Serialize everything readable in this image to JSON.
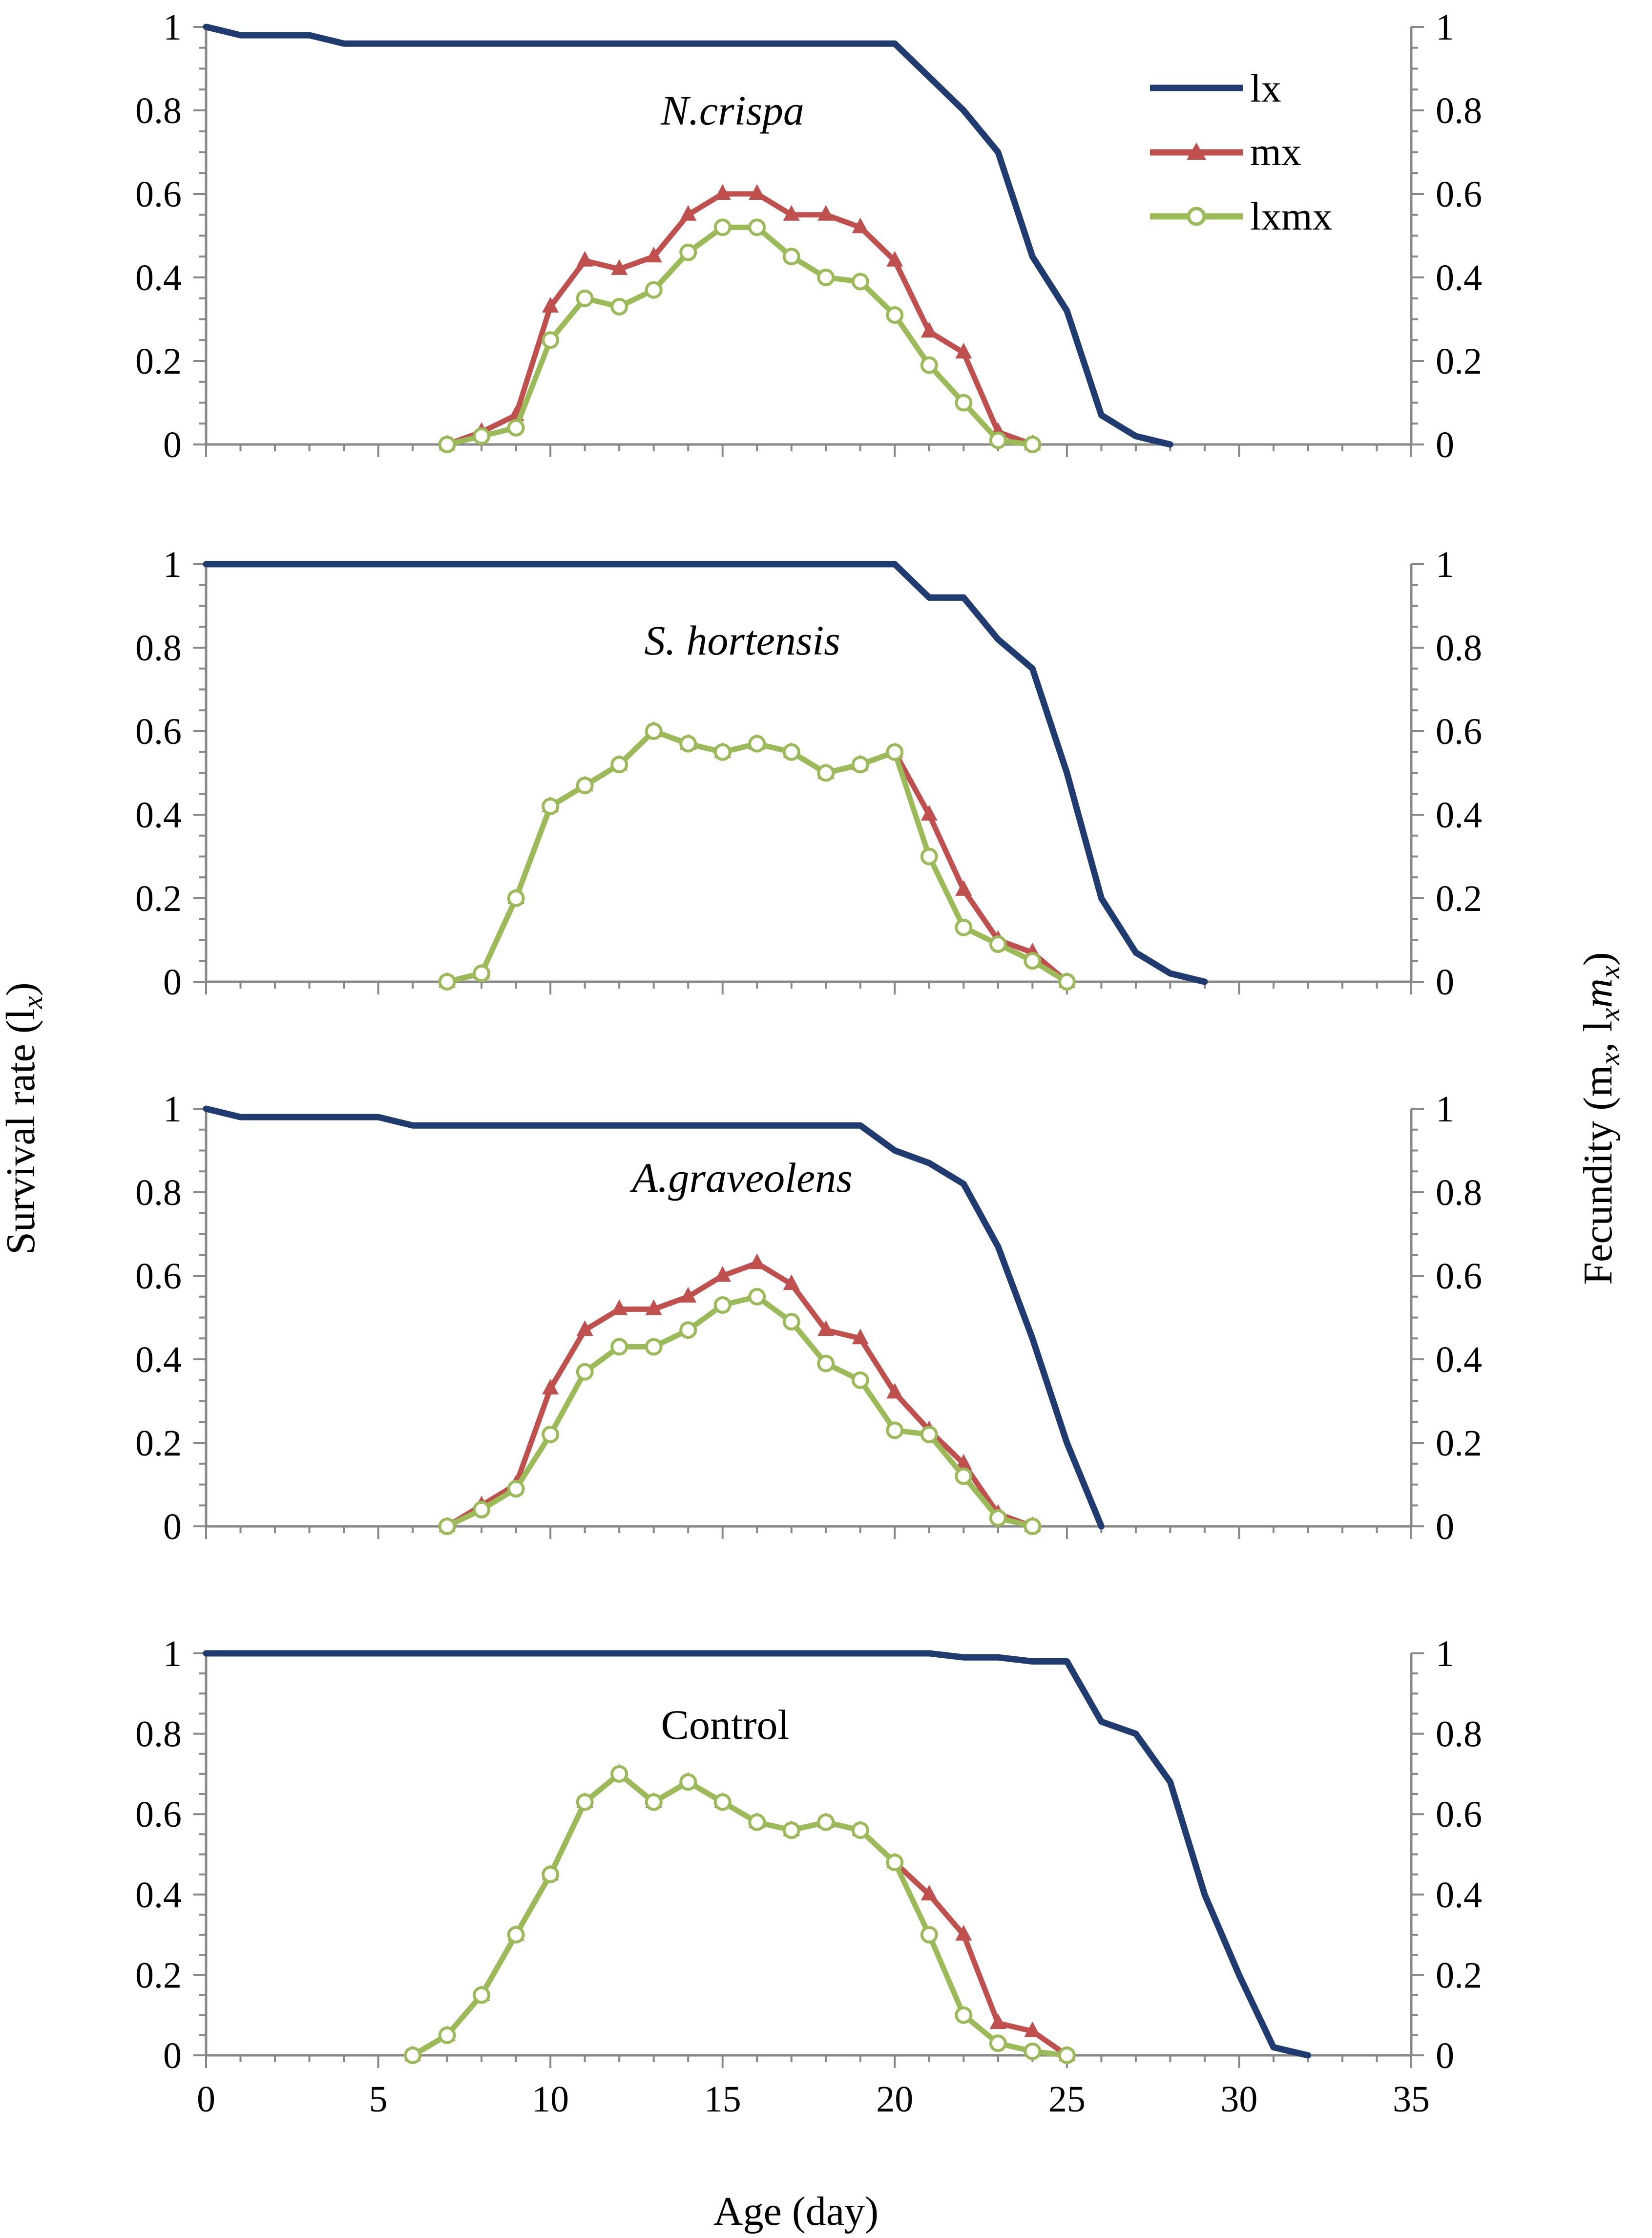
{
  "colors": {
    "lx": "#1f3b70",
    "mx": "#c0504d",
    "lxmx": "#9bbb59",
    "axis": "#888888",
    "text": "#000000"
  },
  "axes": {
    "xlabel": "Age (day)",
    "ylabel_left": "Survival rate (l",
    "ylabel_left_sub": "x",
    "ylabel_left_close": ")",
    "ylabel_right": "Fecundity (m",
    "ylabel_right_sub1": "x",
    "ylabel_right_mid": ", l",
    "ylabel_right_sub2": "x",
    "ylabel_right_m": "m",
    "ylabel_right_sub3": "x",
    "ylabel_right_close": ")",
    "x_ticks": [
      "0",
      "5",
      "10",
      "15",
      "20",
      "25",
      "30",
      "35"
    ],
    "y_ticks": [
      "0",
      "0.2",
      "0.4",
      "0.6",
      "0.8",
      "1"
    ]
  },
  "legend": {
    "lx": "lx",
    "mx": "mx",
    "lxmx": "lxmx"
  },
  "chart_data": [
    {
      "type": "line",
      "title": "N.crispa",
      "title_italic": true,
      "xlim": [
        0,
        35
      ],
      "ylim": [
        0,
        1
      ],
      "series": [
        {
          "name": "lx",
          "marker": "none",
          "points": [
            [
              0,
              1
            ],
            [
              0.5,
              0.99
            ],
            [
              1,
              0.98
            ],
            [
              3,
              0.98
            ],
            [
              4,
              0.96
            ],
            [
              20,
              0.96
            ],
            [
              21,
              0.88
            ],
            [
              22,
              0.8
            ],
            [
              23,
              0.7
            ],
            [
              24,
              0.45
            ],
            [
              25,
              0.32
            ],
            [
              26,
              0.07
            ],
            [
              27,
              0.02
            ],
            [
              28,
              0
            ]
          ]
        },
        {
          "name": "mx",
          "marker": "triangle",
          "points": [
            [
              7,
              0
            ],
            [
              8,
              0.03
            ],
            [
              9,
              0.07
            ],
            [
              10,
              0.33
            ],
            [
              11,
              0.44
            ],
            [
              12,
              0.42
            ],
            [
              13,
              0.45
            ],
            [
              14,
              0.55
            ],
            [
              15,
              0.6
            ],
            [
              16,
              0.6
            ],
            [
              17,
              0.55
            ],
            [
              18,
              0.55
            ],
            [
              19,
              0.52
            ],
            [
              20,
              0.44
            ],
            [
              21,
              0.27
            ],
            [
              22,
              0.22
            ],
            [
              23,
              0.03
            ],
            [
              24,
              0
            ]
          ]
        },
        {
          "name": "lxmx",
          "marker": "circle",
          "points": [
            [
              7,
              0
            ],
            [
              8,
              0.02
            ],
            [
              9,
              0.04
            ],
            [
              10,
              0.25
            ],
            [
              11,
              0.35
            ],
            [
              12,
              0.33
            ],
            [
              13,
              0.37
            ],
            [
              14,
              0.46
            ],
            [
              15,
              0.52
            ],
            [
              16,
              0.52
            ],
            [
              17,
              0.45
            ],
            [
              18,
              0.4
            ],
            [
              19,
              0.39
            ],
            [
              20,
              0.31
            ],
            [
              21,
              0.19
            ],
            [
              22,
              0.1
            ],
            [
              23,
              0.01
            ],
            [
              24,
              0
            ]
          ]
        }
      ]
    },
    {
      "type": "line",
      "title": "S. hortensis",
      "title_italic": true,
      "xlim": [
        0,
        35
      ],
      "ylim": [
        0,
        1
      ],
      "series": [
        {
          "name": "lx",
          "marker": "none",
          "points": [
            [
              0,
              1
            ],
            [
              20,
              1
            ],
            [
              21,
              0.92
            ],
            [
              22,
              0.92
            ],
            [
              23,
              0.82
            ],
            [
              24,
              0.75
            ],
            [
              25,
              0.5
            ],
            [
              26,
              0.2
            ],
            [
              27,
              0.07
            ],
            [
              28,
              0.02
            ],
            [
              29,
              0
            ]
          ]
        },
        {
          "name": "mx",
          "marker": "triangle",
          "points": [
            [
              7,
              0
            ],
            [
              8,
              0.02
            ],
            [
              9,
              0.2
            ],
            [
              10,
              0.42
            ],
            [
              11,
              0.47
            ],
            [
              12,
              0.52
            ],
            [
              13,
              0.6
            ],
            [
              14,
              0.57
            ],
            [
              15,
              0.55
            ],
            [
              16,
              0.57
            ],
            [
              17,
              0.55
            ],
            [
              18,
              0.5
            ],
            [
              19,
              0.52
            ],
            [
              20,
              0.55
            ],
            [
              21,
              0.4
            ],
            [
              22,
              0.22
            ],
            [
              23,
              0.1
            ],
            [
              24,
              0.07
            ],
            [
              25,
              0
            ]
          ]
        },
        {
          "name": "lxmx",
          "marker": "circle",
          "points": [
            [
              7,
              0
            ],
            [
              8,
              0.02
            ],
            [
              9,
              0.2
            ],
            [
              10,
              0.42
            ],
            [
              11,
              0.47
            ],
            [
              12,
              0.52
            ],
            [
              13,
              0.6
            ],
            [
              14,
              0.57
            ],
            [
              15,
              0.55
            ],
            [
              16,
              0.57
            ],
            [
              17,
              0.55
            ],
            [
              18,
              0.5
            ],
            [
              19,
              0.52
            ],
            [
              20,
              0.55
            ],
            [
              21,
              0.3
            ],
            [
              22,
              0.13
            ],
            [
              23,
              0.09
            ],
            [
              24,
              0.05
            ],
            [
              25,
              0
            ]
          ]
        }
      ]
    },
    {
      "type": "line",
      "title": "A.graveolens",
      "title_italic": true,
      "xlim": [
        0,
        35
      ],
      "ylim": [
        0,
        1
      ],
      "series": [
        {
          "name": "lx",
          "marker": "none",
          "points": [
            [
              0,
              1
            ],
            [
              0.5,
              0.99
            ],
            [
              1,
              0.98
            ],
            [
              5,
              0.98
            ],
            [
              6,
              0.96
            ],
            [
              19,
              0.96
            ],
            [
              20,
              0.9
            ],
            [
              21,
              0.87
            ],
            [
              22,
              0.82
            ],
            [
              23,
              0.67
            ],
            [
              24,
              0.45
            ],
            [
              25,
              0.2
            ],
            [
              26,
              0
            ]
          ]
        },
        {
          "name": "mx",
          "marker": "triangle",
          "points": [
            [
              7,
              0
            ],
            [
              8,
              0.05
            ],
            [
              9,
              0.1
            ],
            [
              10,
              0.33
            ],
            [
              11,
              0.47
            ],
            [
              12,
              0.52
            ],
            [
              13,
              0.52
            ],
            [
              14,
              0.55
            ],
            [
              15,
              0.6
            ],
            [
              16,
              0.63
            ],
            [
              17,
              0.58
            ],
            [
              18,
              0.47
            ],
            [
              19,
              0.45
            ],
            [
              20,
              0.32
            ],
            [
              21,
              0.23
            ],
            [
              22,
              0.15
            ],
            [
              23,
              0.03
            ],
            [
              24,
              0
            ]
          ]
        },
        {
          "name": "lxmx",
          "marker": "circle",
          "points": [
            [
              7,
              0
            ],
            [
              8,
              0.04
            ],
            [
              9,
              0.09
            ],
            [
              10,
              0.22
            ],
            [
              11,
              0.37
            ],
            [
              12,
              0.43
            ],
            [
              13,
              0.43
            ],
            [
              14,
              0.47
            ],
            [
              15,
              0.53
            ],
            [
              16,
              0.55
            ],
            [
              17,
              0.49
            ],
            [
              18,
              0.39
            ],
            [
              19,
              0.35
            ],
            [
              20,
              0.23
            ],
            [
              21,
              0.22
            ],
            [
              22,
              0.12
            ],
            [
              23,
              0.02
            ],
            [
              24,
              0
            ]
          ]
        }
      ]
    },
    {
      "type": "line",
      "title": "Control",
      "title_italic": false,
      "xlim": [
        0,
        35
      ],
      "ylim": [
        0,
        1
      ],
      "series": [
        {
          "name": "lx",
          "marker": "none",
          "points": [
            [
              0,
              1
            ],
            [
              21,
              1
            ],
            [
              22,
              0.99
            ],
            [
              23,
              0.99
            ],
            [
              24,
              0.98
            ],
            [
              25,
              0.98
            ],
            [
              26,
              0.83
            ],
            [
              27,
              0.8
            ],
            [
              28,
              0.68
            ],
            [
              29,
              0.4
            ],
            [
              30,
              0.2
            ],
            [
              31,
              0.02
            ],
            [
              32,
              0
            ]
          ]
        },
        {
          "name": "mx",
          "marker": "triangle",
          "points": [
            [
              6,
              0
            ],
            [
              7,
              0.05
            ],
            [
              8,
              0.15
            ],
            [
              9,
              0.3
            ],
            [
              10,
              0.45
            ],
            [
              11,
              0.63
            ],
            [
              12,
              0.7
            ],
            [
              13,
              0.63
            ],
            [
              14,
              0.68
            ],
            [
              15,
              0.63
            ],
            [
              16,
              0.58
            ],
            [
              17,
              0.56
            ],
            [
              18,
              0.58
            ],
            [
              19,
              0.56
            ],
            [
              20,
              0.48
            ],
            [
              21,
              0.4
            ],
            [
              22,
              0.3
            ],
            [
              23,
              0.08
            ],
            [
              24,
              0.06
            ],
            [
              25,
              0
            ]
          ]
        },
        {
          "name": "lxmx",
          "marker": "circle",
          "points": [
            [
              6,
              0
            ],
            [
              7,
              0.05
            ],
            [
              8,
              0.15
            ],
            [
              9,
              0.3
            ],
            [
              10,
              0.45
            ],
            [
              11,
              0.63
            ],
            [
              12,
              0.7
            ],
            [
              13,
              0.63
            ],
            [
              14,
              0.68
            ],
            [
              15,
              0.63
            ],
            [
              16,
              0.58
            ],
            [
              17,
              0.56
            ],
            [
              18,
              0.58
            ],
            [
              19,
              0.56
            ],
            [
              20,
              0.48
            ],
            [
              21,
              0.3
            ],
            [
              22,
              0.1
            ],
            [
              23,
              0.03
            ],
            [
              24,
              0.01
            ],
            [
              25,
              0
            ]
          ]
        }
      ]
    }
  ]
}
